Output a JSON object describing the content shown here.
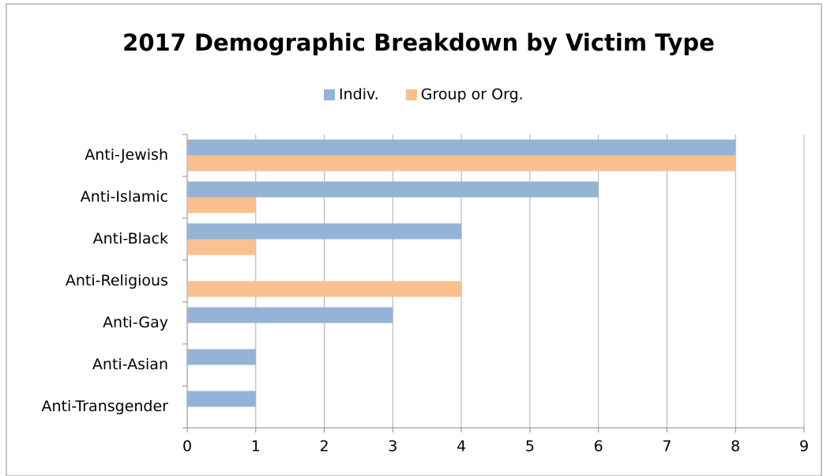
{
  "chart_data": {
    "type": "bar",
    "orientation": "horizontal",
    "title": "2017 Demographic Breakdown by Victim Type",
    "categories": [
      "Anti-Jewish",
      "Anti-Islamic",
      "Anti-Black",
      "Anti-Religious",
      "Anti-Gay",
      "Anti-Asian",
      "Anti-Transgender"
    ],
    "series": [
      {
        "name": "Indiv.",
        "color": "#95b3d7",
        "values": [
          8,
          6,
          4,
          0,
          3,
          1,
          1
        ]
      },
      {
        "name": "Group or Org.",
        "color": "#fac090",
        "values": [
          8,
          1,
          1,
          4,
          0,
          0,
          0
        ]
      }
    ],
    "xlim": [
      0,
      9
    ],
    "xticks": [
      0,
      1,
      2,
      3,
      4,
      5,
      6,
      7,
      8,
      9
    ],
    "grid": true,
    "legend": "top"
  }
}
